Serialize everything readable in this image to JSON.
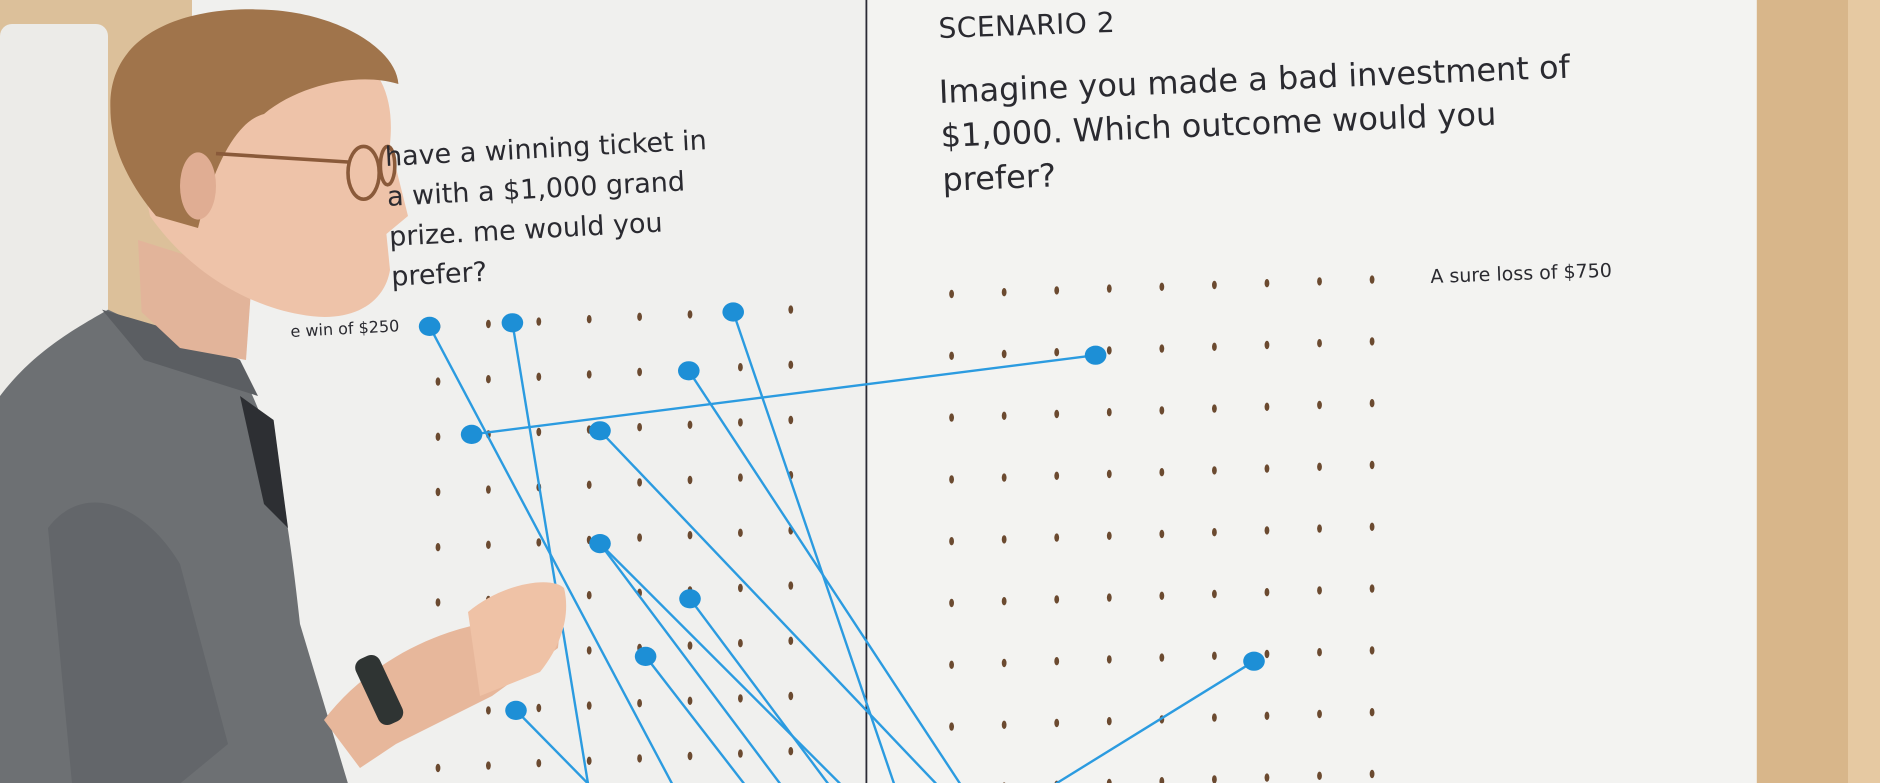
{
  "board": {
    "scenario_label": "SCENARIO 2",
    "question": "Imagine you made a bad investment of $1,000. Which outcome would you prefer?",
    "option_label": "A sure loss of $750",
    "left_question_partial": "have a winning ticket in a with a $1,000 grand prize. me would you prefer?",
    "left_option_partial": "e win of $250"
  },
  "colors": {
    "board": "#f2f2f0",
    "pin": "#1d8fd6",
    "string": "#2b9be0",
    "wood": "#d8b68a",
    "shirt": "#6d7073"
  }
}
